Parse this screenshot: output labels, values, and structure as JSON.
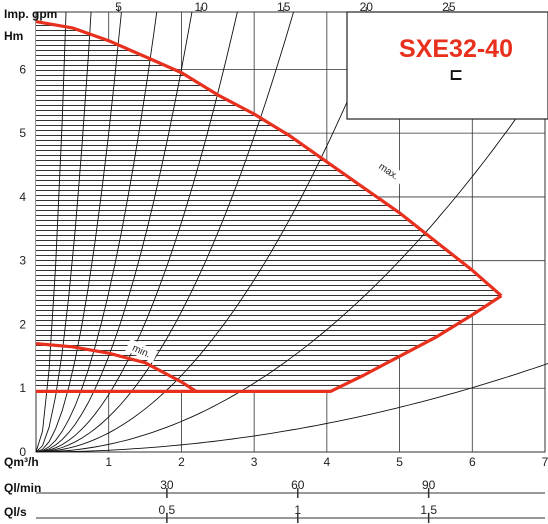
{
  "chart_data": {
    "type": "area",
    "title": "SXE32-40",
    "title_symbol": "⊏",
    "colors": {
      "curve": "#e8301e",
      "grid": "#333333",
      "hatch": "#333333",
      "title": "#e8301e"
    },
    "grid": true,
    "ylabel": "Hm",
    "ylim": [
      0,
      6.9
    ],
    "y_ticks": [
      0,
      1,
      2,
      3,
      4,
      5,
      6
    ],
    "xlabel": "Qm³/h",
    "xlim": [
      0,
      7
    ],
    "x_ticks": [
      0,
      1,
      2,
      3,
      4,
      5,
      6,
      7
    ],
    "x_tick_labels": [
      "",
      "1",
      "2",
      "3",
      "4",
      "5",
      "6",
      "7"
    ],
    "secondary_axes": {
      "top": {
        "label": "Imp. gpm",
        "ticks": [
          5,
          10,
          15,
          20,
          25
        ]
      },
      "lmin": {
        "label": "Ql/min",
        "ticks": [
          30,
          60,
          90
        ]
      },
      "ls": {
        "label": "Ql/s",
        "ticks": [
          0.5,
          1,
          1.5
        ],
        "tick_labels": [
          "0,5",
          "1",
          "1,5"
        ]
      }
    },
    "series": [
      {
        "name": "max.",
        "x": [
          0,
          0.5,
          1,
          1.5,
          2,
          2.5,
          3,
          3.5,
          4,
          4.5,
          5,
          5.5,
          6,
          6.4
        ],
        "y": [
          6.75,
          6.65,
          6.45,
          6.2,
          5.95,
          5.6,
          5.3,
          4.95,
          4.55,
          4.15,
          3.75,
          3.3,
          2.85,
          2.45
        ]
      },
      {
        "name": "min.",
        "x": [
          0,
          0.5,
          1,
          1.5,
          2,
          2.2
        ],
        "y": [
          1.7,
          1.65,
          1.55,
          1.4,
          1.1,
          0.95
        ]
      },
      {
        "name": "",
        "x": [
          0,
          2.2,
          4.05,
          4.5,
          5,
          5.5,
          6,
          6.4
        ],
        "y": [
          0.95,
          0.95,
          0.95,
          1.2,
          1.5,
          1.8,
          2.15,
          2.45
        ]
      }
    ],
    "system_curves_k": [
      40,
      12,
      5,
      2.5,
      1.5,
      0.9,
      0.55,
      0.3,
      0.12,
      0.028
    ],
    "annotations": [
      {
        "text": "max."
      },
      {
        "text": "min."
      }
    ]
  }
}
